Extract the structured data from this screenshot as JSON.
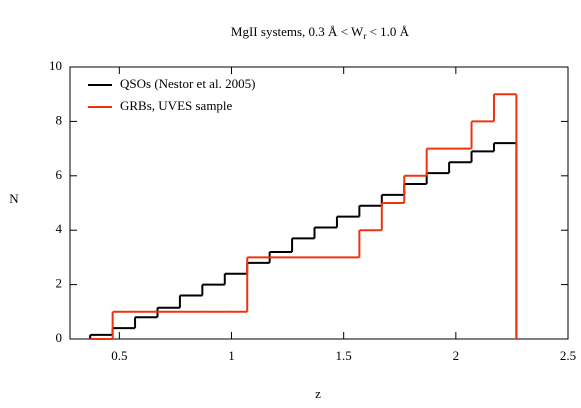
{
  "chart_data": {
    "type": "histogram",
    "title": [
      "MgII systems, 0.3 Å < W",
      "r",
      " < 1.0 Å"
    ],
    "xlabel": "z",
    "ylabel": "N",
    "bins": [
      0.37,
      0.47,
      0.57,
      0.67,
      0.77,
      0.87,
      0.97,
      1.07,
      1.17,
      1.27,
      1.37,
      1.47,
      1.57,
      1.67,
      1.77,
      1.87,
      1.97,
      2.07,
      2.17,
      2.27
    ],
    "series": [
      {
        "name": "QSOs (Nestor et al. 2005)",
        "color": "#000000",
        "values": [
          0.15,
          0.4,
          0.8,
          1.15,
          1.6,
          2.0,
          2.4,
          2.8,
          3.2,
          3.7,
          4.1,
          4.5,
          4.9,
          5.3,
          5.7,
          6.1,
          6.5,
          6.9,
          7.2
        ]
      },
      {
        "name": "GRBs, UVES sample",
        "color": "#ee3311",
        "values": [
          0,
          1,
          1,
          1,
          1,
          1,
          1,
          3,
          3,
          3,
          3,
          3,
          4,
          5,
          6,
          7,
          7,
          8,
          9
        ]
      }
    ],
    "xlim": [
      0.28,
      2.5
    ],
    "ylim": [
      0,
      10
    ],
    "xticks": [
      0.5,
      1,
      1.5,
      2,
      2.5
    ],
    "yticks": [
      0,
      2,
      4,
      6,
      8,
      10
    ],
    "grid": false,
    "legend": "upper left"
  }
}
